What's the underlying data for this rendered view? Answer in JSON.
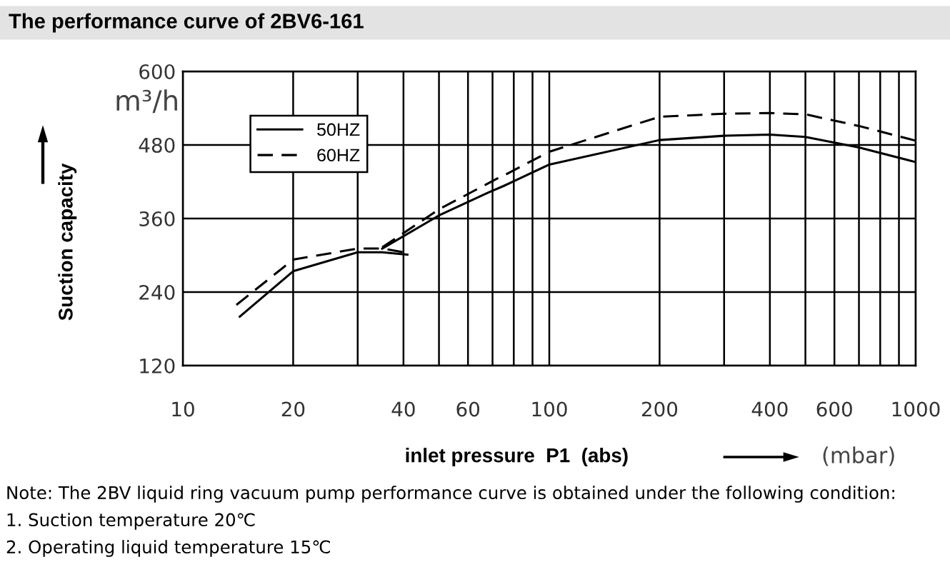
{
  "chart_data": {
    "type": "line",
    "title": "The performance curve of 2BV6-161",
    "xlabel": "inlet pressure  P1  (abs)",
    "ylabel": "Suction capacity",
    "annotations": [
      "m³/h",
      "(mbar)",
      "Note: The 2BV liquid ring vacuum pump performance curve is obtained under the following condition:",
      "1. Suction temperature 20℃",
      "2. Operating liquid temperature 15℃"
    ],
    "log": "x",
    "xlim": [
      10,
      1000
    ],
    "ylim": [
      120,
      600
    ],
    "xticks": [
      10,
      20,
      {
        "value": 30,
        "label": null
      },
      40,
      {
        "value": 50,
        "label": null
      },
      60,
      {
        "value": 70,
        "label": null
      },
      {
        "value": 80,
        "label": null
      },
      {
        "value": 90,
        "label": null
      },
      100,
      200,
      {
        "value": 300,
        "label": null
      },
      400,
      {
        "value": 500,
        "label": null
      },
      600,
      {
        "value": 700,
        "label": null
      },
      {
        "value": 800,
        "label": null
      },
      {
        "value": 900,
        "label": null
      },
      1000
    ],
    "yticks": [
      120,
      240,
      360,
      480,
      600
    ],
    "grid": true,
    "legend": "top left",
    "series": [
      {
        "name": "50HZ",
        "color": "#000000",
        "line_style": "solid",
        "x": [
          14.3,
          20,
          30,
          35,
          41
        ],
        "values": [
          200,
          274,
          305,
          305,
          301
        ]
      },
      {
        "name": "60HZ",
        "color": "#000000",
        "line_style": "dashed",
        "x": [
          14,
          20,
          30,
          35,
          40
        ],
        "values": [
          219,
          293,
          311,
          311,
          305
        ]
      },
      {
        "color": "#000000",
        "line_style": "solid",
        "x": [
          35,
          50,
          68,
          75,
          100,
          200,
          300,
          400,
          500,
          700,
          1000
        ],
        "values": [
          311,
          365,
          402,
          413,
          448,
          488,
          495,
          497,
          493,
          476,
          452
        ]
      },
      {
        "color": "#000000",
        "line_style": "dashed",
        "x": [
          35,
          50,
          72,
          75,
          100,
          200,
          300,
          400,
          500,
          700,
          1000
        ],
        "values": [
          313,
          375,
          425,
          430,
          469,
          526,
          531,
          532,
          530,
          511,
          487
        ]
      }
    ]
  }
}
